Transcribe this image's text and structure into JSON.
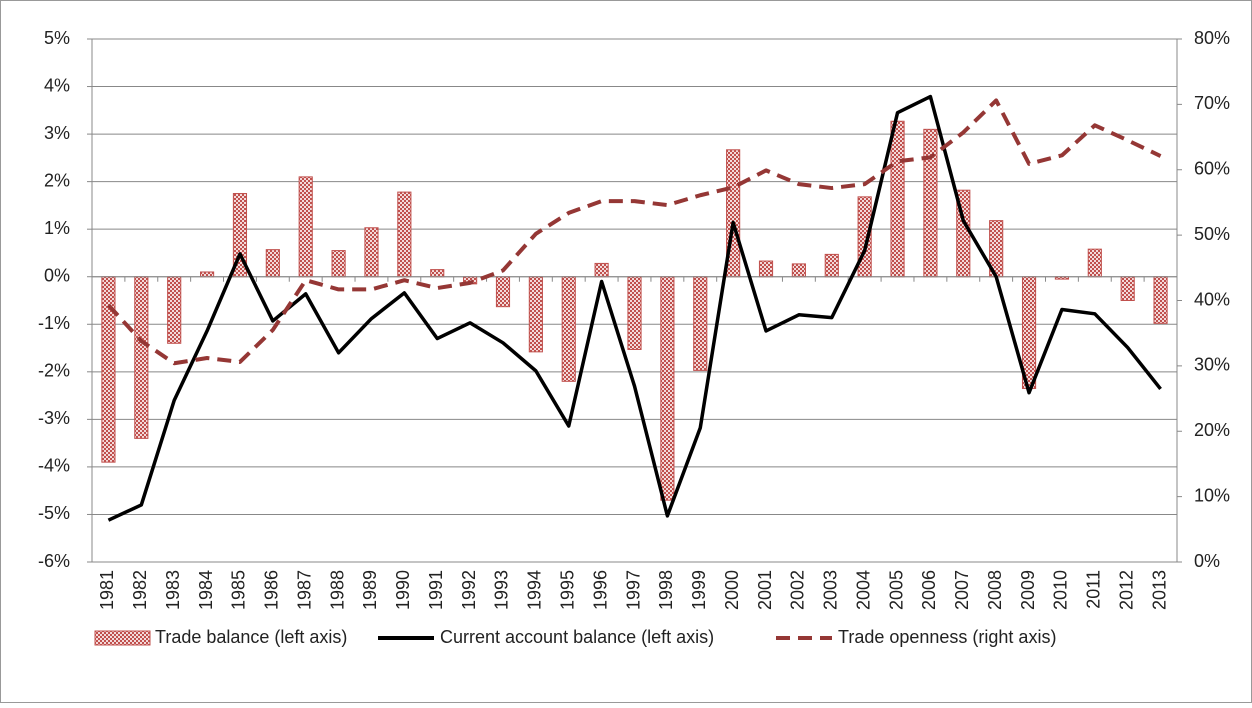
{
  "chart_data": {
    "type": "combo",
    "categories": [
      "1981",
      "1982",
      "1983",
      "1984",
      "1985",
      "1986",
      "1987",
      "1988",
      "1989",
      "1990",
      "1991",
      "1992",
      "1993",
      "1994",
      "1995",
      "1996",
      "1997",
      "1998",
      "1999",
      "2000",
      "2001",
      "2002",
      "2003",
      "2004",
      "2005",
      "2006",
      "2007",
      "2008",
      "2009",
      "2010",
      "2011",
      "2012",
      "2013"
    ],
    "series": [
      {
        "name": "Trade balance (left axis)",
        "type": "bar",
        "color": "#c0504d",
        "values": [
          -3.9,
          -3.4,
          -1.4,
          0.1,
          1.75,
          0.57,
          2.1,
          0.55,
          1.03,
          1.78,
          0.15,
          -0.15,
          -0.63,
          -1.58,
          -2.2,
          0.28,
          -1.53,
          -4.7,
          -1.97,
          2.67,
          0.33,
          0.27,
          0.47,
          1.68,
          3.27,
          3.1,
          1.82,
          1.18,
          -2.35,
          -0.05,
          0.58,
          -0.5,
          -0.98
        ]
      },
      {
        "name": "Current account balance (left axis)",
        "type": "line",
        "color": "#000000",
        "line_style": "solid",
        "values": [
          -5.12,
          -4.8,
          -2.6,
          -1.14,
          0.48,
          -0.93,
          -0.36,
          -1.6,
          -0.88,
          -0.34,
          -1.3,
          -0.97,
          -1.39,
          -1.98,
          -3.14,
          -0.1,
          -2.3,
          -5.03,
          -3.18,
          1.14,
          -1.14,
          -0.8,
          -0.86,
          0.55,
          3.45,
          3.79,
          1.18,
          0,
          -2.44,
          -0.69,
          -0.78,
          -1.49,
          -2.36
        ]
      },
      {
        "name": "Trade openness (right axis)",
        "type": "line",
        "axis": "y2",
        "color": "#953735",
        "line_style": "dashed",
        "values": [
          39.3,
          33.8,
          30.4,
          31.2,
          30.6,
          35.5,
          43.1,
          41.7,
          41.7,
          43.1,
          41.9,
          42.7,
          44.6,
          50.2,
          53.4,
          55.2,
          55.2,
          54.6,
          56.1,
          57.3,
          59.9,
          57.8,
          57.2,
          57.8,
          61.3,
          61.9,
          65.7,
          70.6,
          60.9,
          62.2,
          66.8,
          64.5,
          62.1
        ]
      }
    ],
    "ylim": [
      -6,
      5
    ],
    "yticks": [
      {
        "value": -6,
        "label": "-6%"
      },
      {
        "value": -5,
        "label": "-5%"
      },
      {
        "value": -4,
        "label": "-4%"
      },
      {
        "value": -3,
        "label": "-3%"
      },
      {
        "value": -2,
        "label": "-2%"
      },
      {
        "value": -1,
        "label": "-1%"
      },
      {
        "value": 0,
        "label": "0%"
      },
      {
        "value": 1,
        "label": "1%"
      },
      {
        "value": 2,
        "label": "2%"
      },
      {
        "value": 3,
        "label": "3%"
      },
      {
        "value": 4,
        "label": "4%"
      },
      {
        "value": 5,
        "label": "5%"
      }
    ],
    "y2lim": [
      0,
      80
    ],
    "y2ticks": [
      {
        "value": 0,
        "label": "0%"
      },
      {
        "value": 10,
        "label": "10%"
      },
      {
        "value": 20,
        "label": "20%"
      },
      {
        "value": 30,
        "label": "30%"
      },
      {
        "value": 40,
        "label": "40%"
      },
      {
        "value": 50,
        "label": "50%"
      },
      {
        "value": 60,
        "label": "60%"
      },
      {
        "value": 70,
        "label": "70%"
      },
      {
        "value": 80,
        "label": "80%"
      }
    ],
    "grid": true,
    "legend": "bottom"
  }
}
